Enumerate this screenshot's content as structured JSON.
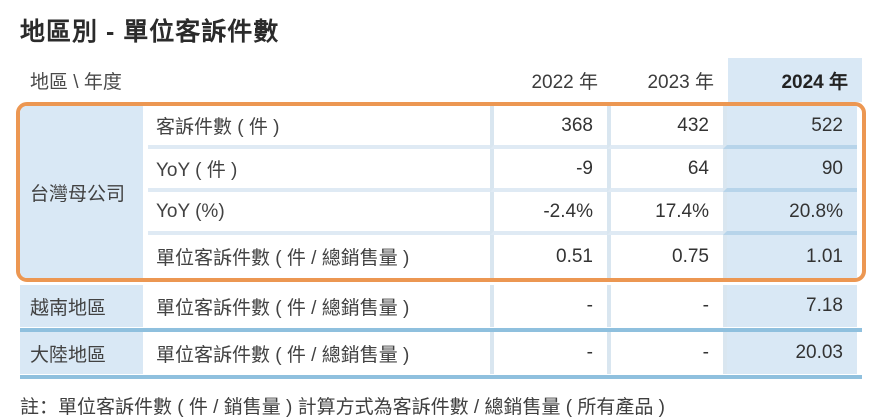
{
  "title": "地區別 - 單位客訴件數",
  "table": {
    "corner_label": "地區 \\ 年度",
    "years": [
      "2022 年",
      "2023 年",
      "2024 年"
    ],
    "groups": [
      {
        "region": "台灣母公司",
        "highlighted": true,
        "rows": [
          {
            "metric": "客訴件數 ( 件 )",
            "values": [
              "368",
              "432",
              "522"
            ]
          },
          {
            "metric": "YoY ( 件 )",
            "values": [
              "-9",
              "64",
              "90"
            ]
          },
          {
            "metric": "YoY (%)",
            "values": [
              "-2.4%",
              "17.4%",
              "20.8%"
            ]
          },
          {
            "metric": "單位客訴件數 ( 件 / 總銷售量 )",
            "values": [
              "0.51",
              "0.75",
              "1.01"
            ]
          }
        ]
      },
      {
        "region": "越南地區",
        "highlighted": false,
        "rows": [
          {
            "metric": "單位客訴件數 ( 件 / 總銷售量 )",
            "values": [
              "-",
              "-",
              "7.18"
            ]
          }
        ]
      },
      {
        "region": "大陸地區",
        "highlighted": false,
        "rows": [
          {
            "metric": "單位客訴件數 ( 件 / 總銷售量 )",
            "values": [
              "-",
              "-",
              "20.03"
            ]
          }
        ]
      }
    ]
  },
  "footnote": "註：單位客訴件數 ( 件 / 銷售量 ) 計算方式為客訴件數 / 總銷售量 ( 所有產品 )",
  "colors": {
    "highlight_border": "#ec9752",
    "cell_blue": "#d9e8f5",
    "grid_light_blue": "#dfeaf4",
    "grid_blue_strong": "#8fc0de",
    "blue_col_separator": "#b7d4ea",
    "text": "#3e3e3e"
  }
}
